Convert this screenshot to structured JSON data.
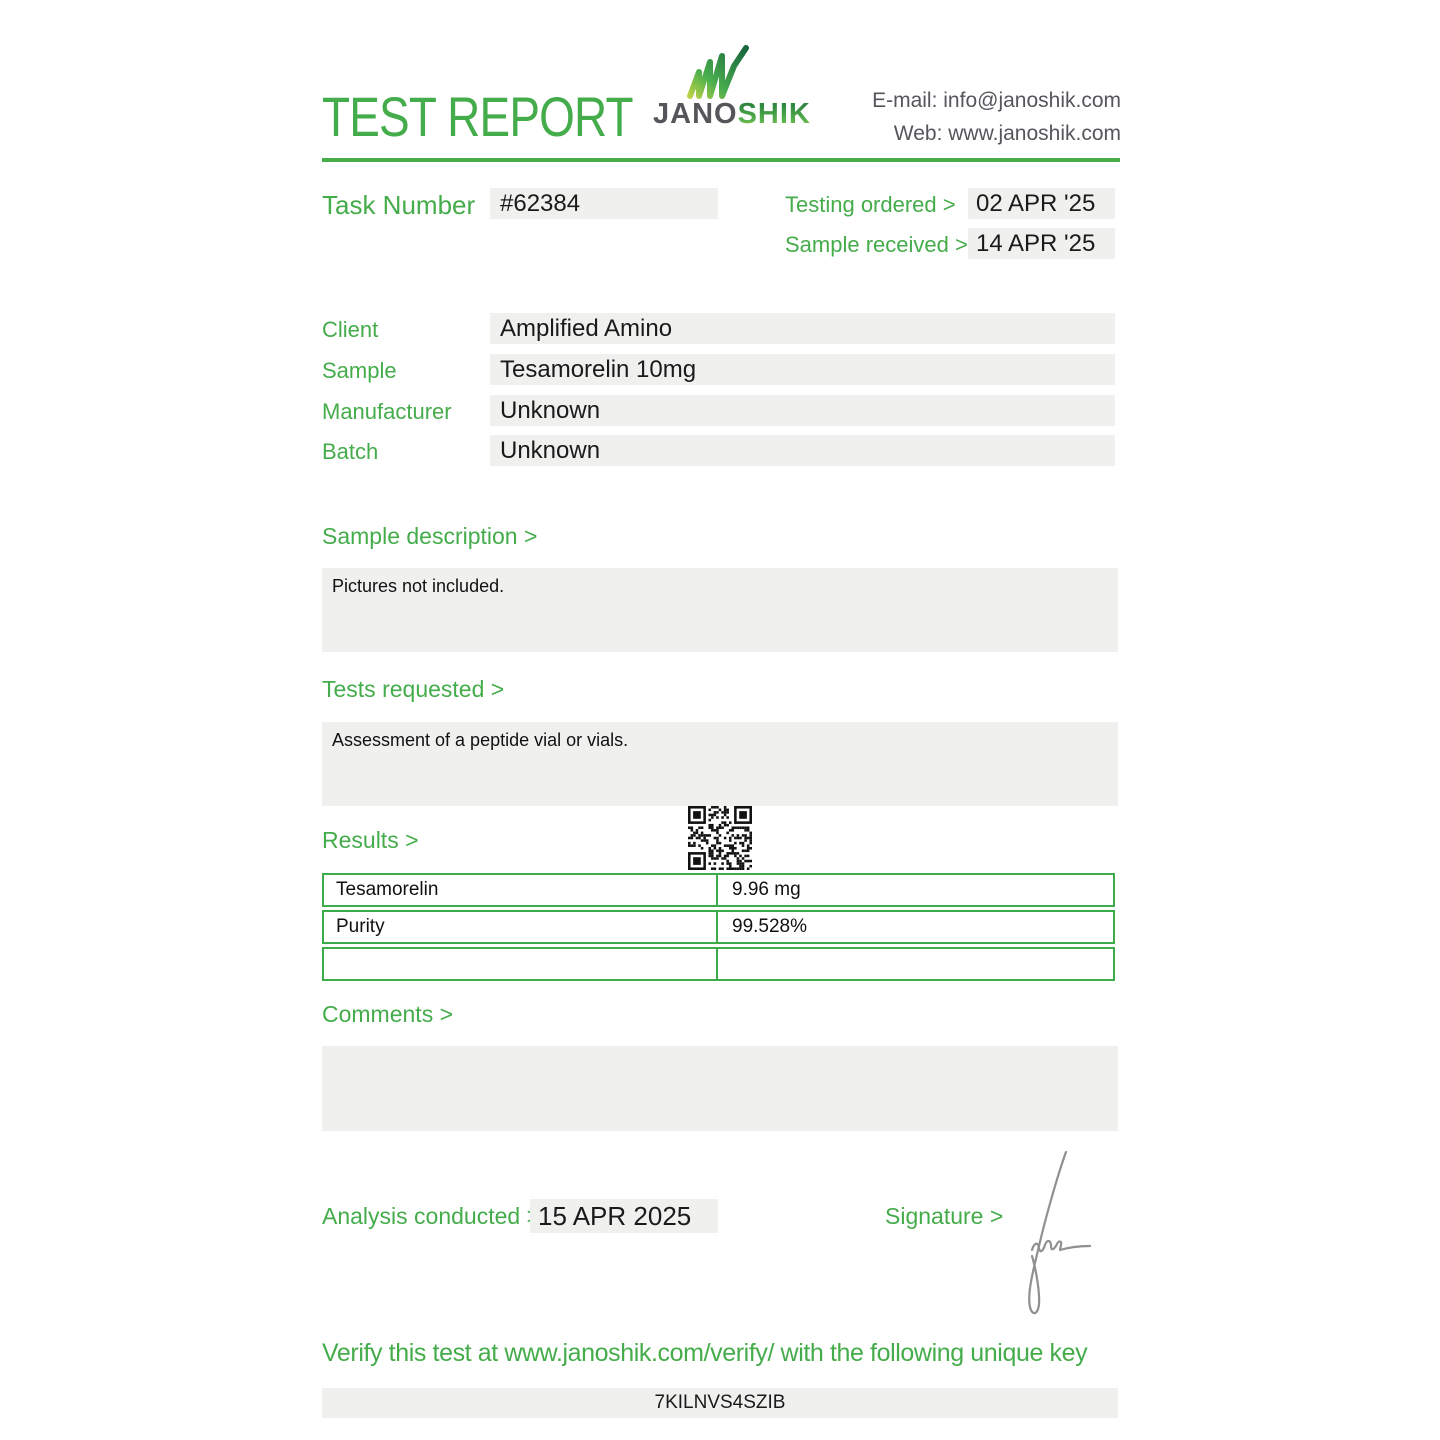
{
  "header": {
    "title": "TEST REPORT",
    "logo": {
      "text_dark": "JANO",
      "text_green": "SHIK"
    },
    "email_line": "E-mail: info@janoshik.com",
    "web_line": "Web: www.janoshik.com"
  },
  "meta": {
    "task_number_label": "Task Number",
    "task_number": "#62384",
    "testing_ordered_label": "Testing ordered  >",
    "testing_ordered": "02 APR '25",
    "sample_received_label": "Sample received >",
    "sample_received": "14 APR '25"
  },
  "fields": [
    {
      "label": "Client",
      "value": "Amplified Amino"
    },
    {
      "label": "Sample",
      "value": "Tesamorelin 10mg"
    },
    {
      "label": "Manufacturer",
      "value": "Unknown"
    },
    {
      "label": "Batch",
      "value": "Unknown"
    }
  ],
  "sections": {
    "sample_description": {
      "label": "Sample description >",
      "content": "Pictures not included."
    },
    "tests_requested": {
      "label": "Tests requested >",
      "content": "Assessment of a peptide vial or vials."
    },
    "results": {
      "label": "Results >",
      "rows": [
        {
          "name": "Tesamorelin",
          "value": "9.96 mg"
        },
        {
          "name": "Purity",
          "value": "99.528%"
        },
        {
          "name": "",
          "value": ""
        }
      ]
    },
    "comments": {
      "label": "Comments >",
      "content": ""
    }
  },
  "footer": {
    "analysis_label": "Analysis conducted >",
    "analysis_date": "15 APR 2025",
    "signature_label": "Signature >",
    "verify_text": "Verify this test at www.janoshik.com/verify/ with the following unique key",
    "unique_key": "7KILNVS4SZIB"
  },
  "colors": {
    "accent_green": "#45ac4b",
    "table_border_green": "#3cab49",
    "box_background": "#f0f0ef",
    "body_text": "#1a1a1a",
    "contact_text": "#55565b"
  }
}
